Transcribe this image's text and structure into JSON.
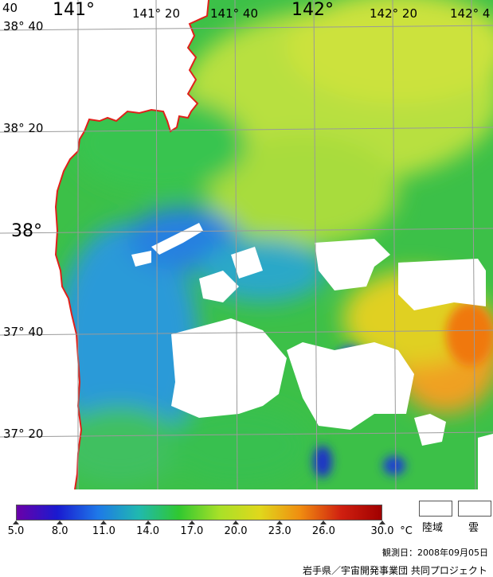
{
  "map": {
    "lon_labels": [
      {
        "text": "141°",
        "cls": "lbl-big"
      },
      {
        "text": "141° 20",
        "cls": "lbl-sm"
      },
      {
        "text": "141° 40",
        "cls": "lbl-sm"
      },
      {
        "text": "142°",
        "cls": "lbl-big"
      },
      {
        "text": "142° 20",
        "cls": "lbl-sm"
      },
      {
        "text": "142° 4",
        "cls": "lbl-sm"
      }
    ],
    "lat_labels": [
      {
        "text": "38° 40",
        "cls": "lbl-sm"
      },
      {
        "text": "38° 20",
        "cls": "lbl-sm"
      },
      {
        "text": "38°",
        "cls": "lbl-big"
      },
      {
        "text": "37° 40",
        "cls": "lbl-sm"
      },
      {
        "text": "37° 20",
        "cls": "lbl-sm"
      }
    ],
    "corner_label": "40",
    "colors": {
      "coastline": "#e0201a",
      "land": "#ffffff",
      "cloud": "#ffffff",
      "grid": "#9a9a9a"
    }
  },
  "legend": {
    "ticks": [
      "5.0",
      "8.0",
      "11.0",
      "14.0",
      "17.0",
      "20.0",
      "23.0",
      "26.0",
      "30.0"
    ],
    "unit": "°C",
    "land_label": "陸域",
    "cloud_label": "雲",
    "gradient": [
      "#6a00a8",
      "#1a1ad0",
      "#1e78e8",
      "#20b8b0",
      "#30c830",
      "#a8e028",
      "#e0d81c",
      "#f08c10",
      "#d02010",
      "#a00000"
    ]
  },
  "footer": {
    "observation_date": "観測日：2008年09月05日",
    "credit": "岩手県／宇宙開発事業団 共同プロジェクト"
  }
}
